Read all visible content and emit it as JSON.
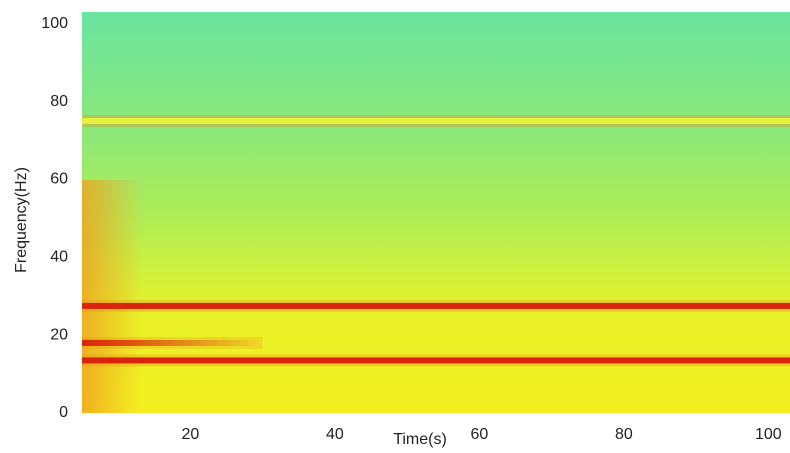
{
  "chart_data": {
    "type": "spectrogram",
    "x_label": "Time(s)",
    "y_label": "Frequency(Hz)",
    "xlim": [
      5,
      103
    ],
    "ylim": [
      0,
      103
    ],
    "xticks": [
      20,
      40,
      60,
      80,
      100
    ],
    "yticks": [
      0,
      20,
      40,
      60,
      80,
      100
    ],
    "bands": [
      {
        "y": 27.5,
        "x": [
          5,
          103
        ],
        "color": "#d8240a"
      },
      {
        "y": 13.5,
        "x": [
          5,
          103
        ],
        "color": "#d8240a"
      },
      {
        "y": 18,
        "x": [
          5,
          30
        ],
        "color": "#d8240a"
      },
      {
        "y": 75,
        "x": [
          5,
          103
        ],
        "color": "#e8f040"
      }
    ]
  }
}
